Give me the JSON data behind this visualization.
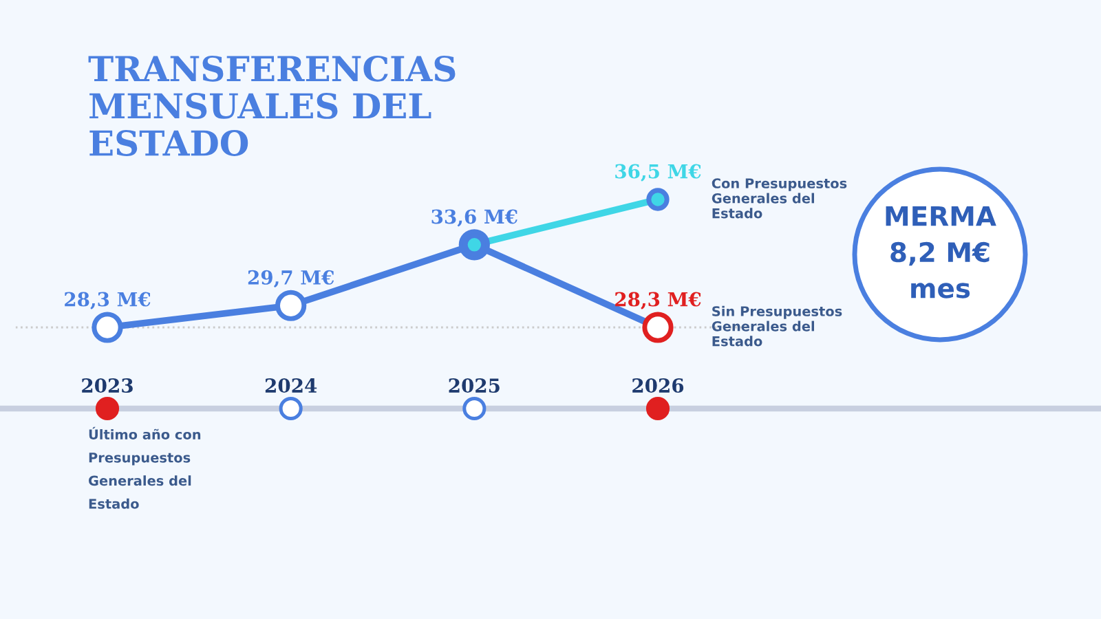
{
  "chart_data": {
    "type": "line",
    "title": "TRANSFERENCIAS\nMENSUALES DEL\nESTADO",
    "categories": [
      "2023",
      "2024",
      "2025",
      "2026"
    ],
    "series": [
      {
        "name": "Sin Presupuestos\nGenerales del\nEstado",
        "color": "#4a7fe0",
        "colors": [
          "#4a7fe0",
          "#4a7fe0",
          "#4a7fe0",
          "#e02020"
        ],
        "values": [
          28.3,
          29.7,
          33.6,
          28.3
        ],
        "value_labels": [
          "28,3 M€",
          "29,7 M€",
          "33,6 M€",
          "28,3 M€"
        ]
      },
      {
        "name": "Con Presupuestos\nGenerales del\nEstado",
        "color": "#3fd6e6",
        "values": [
          null,
          null,
          33.6,
          36.5
        ],
        "value_labels": [
          null,
          null,
          null,
          "36,5 M€"
        ]
      }
    ],
    "ref_lines": [
      {
        "axis": "y",
        "value": 28.3,
        "color": "#cccccc",
        "line_style": "dotted"
      }
    ],
    "annotations": [
      "Último año con\nPresupuestos\nGenerales del\nEstado",
      "MERMA\n8,2 M€\nmes"
    ],
    "marker": "circle",
    "legend": false,
    "grid": false
  }
}
